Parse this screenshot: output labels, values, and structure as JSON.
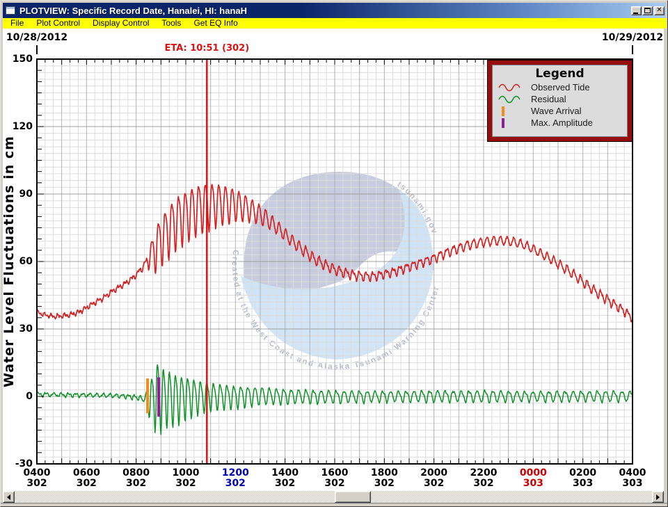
{
  "window": {
    "title": "PLOTVIEW: Specific Record Date, Hanalei, HI: hanaH",
    "controls": [
      "minimize",
      "maximize",
      "close"
    ]
  },
  "menu": {
    "items": [
      "File",
      "Plot Control",
      "Display Control",
      "Tools",
      "Get EQ Info"
    ]
  },
  "watermark": {
    "ring_text": "Created at the West Coast and Alaska Tsunami Warning Center",
    "site_text": "tsunami.gov"
  },
  "colors": {
    "observed_tide": "#d42222",
    "residual": "#0d9226",
    "wave_arrival": "#ef8e1e",
    "max_amplitude": "#8e1d96",
    "eta_line": "#dd1111",
    "noon_label": "#0000bb",
    "midnight_label": "#cc0000",
    "legend_border": "#970c0c",
    "menu_bg": "#ffff00",
    "grid_minor": "#dcdcdc",
    "grid_hour": "#b2b2b2",
    "grid_major": "#a0a0a0"
  },
  "chart_data": {
    "type": "line",
    "ylabel": "Water Level Fluctuations in cm",
    "y_axis": {
      "min": -30,
      "max": 150,
      "ticks": [
        150,
        120,
        90,
        60,
        30,
        0,
        -30
      ],
      "minor_step_cm": 3,
      "major_step_cm": 30
    },
    "x_axis": {
      "start_hour": 4,
      "end_hour": 28,
      "minor_step_min": 20,
      "ticks": [
        {
          "hour": 4,
          "time": "0400",
          "day": "302",
          "color": "#000000"
        },
        {
          "hour": 6,
          "time": "0600",
          "day": "302",
          "color": "#000000"
        },
        {
          "hour": 8,
          "time": "0800",
          "day": "302",
          "color": "#000000"
        },
        {
          "hour": 10,
          "time": "1000",
          "day": "302",
          "color": "#000000"
        },
        {
          "hour": 12,
          "time": "1200",
          "day": "302",
          "color": "#0000bb"
        },
        {
          "hour": 14,
          "time": "1400",
          "day": "302",
          "color": "#000000"
        },
        {
          "hour": 16,
          "time": "1600",
          "day": "302",
          "color": "#000000"
        },
        {
          "hour": 18,
          "time": "1800",
          "day": "302",
          "color": "#000000"
        },
        {
          "hour": 20,
          "time": "2000",
          "day": "302",
          "color": "#000000"
        },
        {
          "hour": 22,
          "time": "2200",
          "day": "302",
          "color": "#000000"
        },
        {
          "hour": 24,
          "time": "0000",
          "day": "303",
          "color": "#cc0000"
        },
        {
          "hour": 26,
          "time": "0200",
          "day": "303",
          "color": "#000000"
        },
        {
          "hour": 28,
          "time": "0400",
          "day": "303",
          "color": "#000000"
        }
      ]
    },
    "date_labels": [
      {
        "text": "10/28/2012",
        "hour": 4
      },
      {
        "text": "10/29/2012",
        "hour": 28
      }
    ],
    "eta_marker": {
      "label": "ETA: 10:51 (302)",
      "hour": 10.85,
      "color": "#dd1111"
    },
    "event_markers": [
      {
        "name": "Wave Arrival",
        "hour": 8.46,
        "from_cm": -7.5,
        "to_cm": 8.0,
        "color": "#ef8e1e"
      },
      {
        "name": "Max. Amplitude",
        "hour": 8.91,
        "from_cm": -9.0,
        "to_cm": 8.5,
        "color": "#8e1d96"
      }
    ],
    "series": [
      {
        "name": "Observed Tide",
        "color": "#d42222",
        "width": 1.7,
        "noise": 0.5,
        "baseline": [
          [
            4,
            37.5
          ],
          [
            4.3,
            36.3
          ],
          [
            4.7,
            35.5
          ],
          [
            5,
            35.8
          ],
          [
            5.3,
            36.2
          ],
          [
            5.7,
            37.5
          ],
          [
            6,
            39.5
          ],
          [
            6.3,
            41.5
          ],
          [
            6.7,
            44
          ],
          [
            7,
            46.5
          ],
          [
            7.3,
            48.5
          ],
          [
            7.6,
            50.5
          ],
          [
            8,
            54
          ],
          [
            8.3,
            58
          ],
          [
            8.6,
            63
          ],
          [
            9,
            70
          ],
          [
            9.3,
            74
          ],
          [
            9.6,
            78
          ],
          [
            10,
            81
          ],
          [
            10.3,
            83
          ],
          [
            10.6,
            84.5
          ],
          [
            11,
            85.5
          ],
          [
            11.4,
            86
          ],
          [
            12,
            85.5
          ],
          [
            12.4,
            84
          ],
          [
            12.8,
            82
          ],
          [
            13.2,
            79.5
          ],
          [
            13.6,
            76
          ],
          [
            14,
            72
          ],
          [
            14.4,
            68
          ],
          [
            14.8,
            64.5
          ],
          [
            15.2,
            61
          ],
          [
            15.6,
            58.5
          ],
          [
            16,
            56.5
          ],
          [
            16.4,
            55
          ],
          [
            16.8,
            54
          ],
          [
            17.2,
            53.5
          ],
          [
            17.6,
            53.5
          ],
          [
            18,
            54.5
          ],
          [
            18.4,
            55.5
          ],
          [
            18.8,
            57
          ],
          [
            19.2,
            58.5
          ],
          [
            19.6,
            60
          ],
          [
            20,
            61.5
          ],
          [
            20.4,
            63.5
          ],
          [
            21,
            66
          ],
          [
            21.4,
            67.5
          ],
          [
            22,
            68.7
          ],
          [
            22.4,
            69.3
          ],
          [
            22.8,
            69.3
          ],
          [
            23.2,
            68.7
          ],
          [
            23.6,
            67.5
          ],
          [
            24,
            65.5
          ],
          [
            24.4,
            63
          ],
          [
            24.8,
            60.5
          ],
          [
            25.2,
            57.5
          ],
          [
            25.6,
            54.5
          ],
          [
            26,
            51
          ],
          [
            26.4,
            47.5
          ],
          [
            26.8,
            44.5
          ],
          [
            27.2,
            41.5
          ],
          [
            27.6,
            38.5
          ],
          [
            28,
            35
          ]
        ],
        "amplitude": [
          [
            4,
            0.6
          ],
          [
            8,
            0.8
          ],
          [
            8.4,
            1.5
          ],
          [
            8.6,
            6
          ],
          [
            8.8,
            10
          ],
          [
            9.2,
            11
          ],
          [
            9.6,
            11.5
          ],
          [
            10.2,
            11
          ],
          [
            10.8,
            10.5
          ],
          [
            11.2,
            9.5
          ],
          [
            11.6,
            8.5
          ],
          [
            12,
            7
          ],
          [
            12.5,
            5.5
          ],
          [
            13,
            4.2
          ],
          [
            13.5,
            3.2
          ],
          [
            14,
            2.6
          ],
          [
            15,
            2.2
          ],
          [
            16,
            1.9
          ],
          [
            17,
            1.7
          ],
          [
            18,
            1.6
          ],
          [
            19,
            1.6
          ],
          [
            20,
            1.8
          ],
          [
            21,
            1.9
          ],
          [
            22,
            2
          ],
          [
            23,
            1.9
          ],
          [
            24,
            1.8
          ],
          [
            25,
            1.9
          ],
          [
            26,
            1.9
          ],
          [
            27,
            1.8
          ],
          [
            28,
            1.5
          ]
        ],
        "period": [
          [
            4,
            0.27
          ],
          [
            28,
            0.27
          ]
        ]
      },
      {
        "name": "Residual",
        "color": "#0d9226",
        "width": 1.5,
        "noise": 0.35,
        "baseline": [
          [
            4,
            1
          ],
          [
            5,
            0.7
          ],
          [
            6,
            0.6
          ],
          [
            7,
            0.4
          ],
          [
            7.6,
            0.1
          ],
          [
            8,
            -0.4
          ],
          [
            8.3,
            -1.2
          ],
          [
            8.6,
            -0.6
          ],
          [
            9,
            0.3
          ],
          [
            9.6,
            -0.5
          ],
          [
            10,
            0.2
          ],
          [
            11,
            0.3
          ],
          [
            12,
            0.1
          ],
          [
            13,
            0.4
          ],
          [
            14,
            0.2
          ],
          [
            16,
            0
          ],
          [
            18,
            0.1
          ],
          [
            20,
            0.2
          ],
          [
            22,
            0.2
          ],
          [
            24,
            0.1
          ],
          [
            26,
            0.2
          ],
          [
            28,
            0.2
          ]
        ],
        "amplitude": [
          [
            4,
            0.7
          ],
          [
            7.9,
            0.8
          ],
          [
            8.35,
            1.2
          ],
          [
            8.5,
            7
          ],
          [
            8.7,
            11
          ],
          [
            8.9,
            17
          ],
          [
            9.05,
            13
          ],
          [
            9.6,
            11
          ],
          [
            10,
            9
          ],
          [
            10.4,
            7.5
          ],
          [
            10.8,
            6.3
          ],
          [
            11.2,
            5.6
          ],
          [
            11.8,
            5
          ],
          [
            12.4,
            4.4
          ],
          [
            13,
            3.8
          ],
          [
            13.6,
            3.3
          ],
          [
            14.4,
            3
          ],
          [
            15.2,
            2.8
          ],
          [
            16,
            2.6
          ],
          [
            17,
            2.5
          ],
          [
            18,
            2.3
          ],
          [
            19,
            2.3
          ],
          [
            20,
            2.5
          ],
          [
            21,
            2.3
          ],
          [
            22,
            2.5
          ],
          [
            23,
            2.3
          ],
          [
            24,
            2.1
          ],
          [
            25,
            2.3
          ],
          [
            26,
            2.1
          ],
          [
            27,
            2.3
          ],
          [
            28,
            2.1
          ]
        ],
        "period": [
          [
            4,
            0.32
          ],
          [
            8.4,
            0.23
          ],
          [
            10,
            0.25
          ],
          [
            12,
            0.28
          ],
          [
            16,
            0.31
          ],
          [
            28,
            0.33
          ]
        ]
      }
    ],
    "legend": {
      "title": "Legend",
      "items": [
        {
          "label": "Observed Tide",
          "symbol": "sine",
          "color": "#d42222"
        },
        {
          "label": "Residual",
          "symbol": "sine",
          "color": "#0d9226"
        },
        {
          "label": "Wave Arrival",
          "symbol": "bar",
          "color": "#ef8e1e"
        },
        {
          "label": "Max. Amplitude",
          "symbol": "bar",
          "color": "#8e1d96"
        }
      ]
    }
  }
}
